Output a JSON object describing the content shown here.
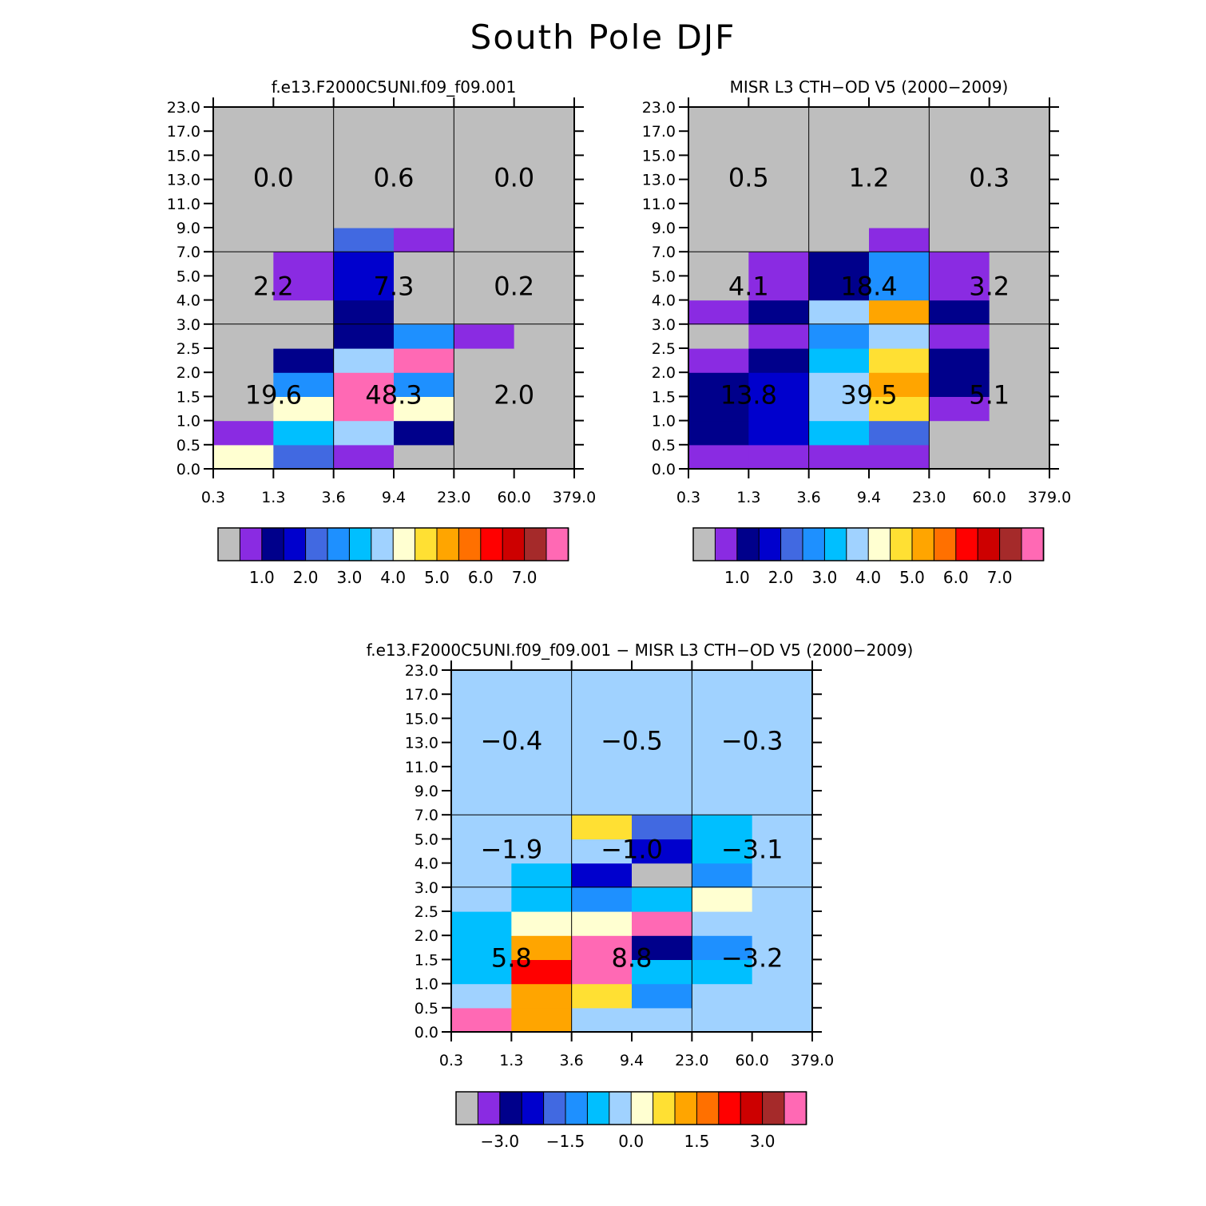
{
  "title": "South Pole DJF",
  "palette": [
    "#bebebe",
    "#8a2be2",
    "#00008b",
    "#0000cd",
    "#4169e1",
    "#1e90ff",
    "#00bfff",
    "#a0d2ff",
    "#ffffd1",
    "#ffe033",
    "#ffa500",
    "#ff7000",
    "#ff0000",
    "#cd0000",
    "#a52a2a",
    "#ff69b4"
  ],
  "chart_data": [
    {
      "type": "heatmap",
      "title": "f.e13.F2000C5UNI.f09_f09.001",
      "x_tick_labels": [
        "0.3",
        "1.3",
        "3.6",
        "9.4",
        "23.0",
        "60.0",
        "379.0"
      ],
      "y_tick_labels": [
        "0.0",
        "0.5",
        "1.0",
        "1.5",
        "2.0",
        "2.5",
        "3.0",
        "4.0",
        "5.0",
        "7.0",
        "9.0",
        "11.0",
        "13.0",
        "15.0",
        "17.0",
        "23.0"
      ],
      "cells_color_index_rows_bottom_to_top": [
        [
          8,
          4,
          1,
          0,
          0,
          0
        ],
        [
          1,
          6,
          7,
          2,
          0,
          0
        ],
        [
          0,
          8,
          15,
          8,
          0,
          0
        ],
        [
          0,
          5,
          15,
          5,
          0,
          0
        ],
        [
          0,
          2,
          7,
          15,
          0,
          0
        ],
        [
          0,
          0,
          2,
          5,
          1,
          0
        ],
        [
          0,
          0,
          2,
          0,
          0,
          0
        ],
        [
          0,
          1,
          3,
          0,
          0,
          0
        ],
        [
          0,
          1,
          3,
          0,
          0,
          0
        ],
        [
          0,
          0,
          4,
          1,
          0,
          0
        ],
        [
          0,
          0,
          0,
          0,
          0,
          0
        ],
        [
          0,
          0,
          0,
          0,
          0,
          0
        ],
        [
          0,
          0,
          0,
          0,
          0,
          0
        ],
        [
          0,
          0,
          0,
          0,
          0,
          0
        ],
        [
          0,
          0,
          0,
          0,
          0,
          0
        ]
      ],
      "group_totals": [
        [
          "19.6",
          "48.3",
          "2.0"
        ],
        [
          "2.2",
          "7.3",
          "0.2"
        ],
        [
          "0.0",
          "0.6",
          "0.0"
        ]
      ],
      "colorbar_labels": [
        "1.0",
        "2.0",
        "3.0",
        "4.0",
        "5.0",
        "6.0",
        "7.0"
      ]
    },
    {
      "type": "heatmap",
      "title": "MISR L3 CTH-OD V5 (2000-2009)",
      "x_tick_labels": [
        "0.3",
        "1.3",
        "3.6",
        "9.4",
        "23.0",
        "60.0",
        "379.0"
      ],
      "y_tick_labels": [
        "0.0",
        "0.5",
        "1.0",
        "1.5",
        "2.0",
        "2.5",
        "3.0",
        "4.0",
        "5.0",
        "7.0",
        "9.0",
        "11.0",
        "13.0",
        "15.0",
        "17.0",
        "23.0"
      ],
      "cells_color_index_rows_bottom_to_top": [
        [
          1,
          1,
          1,
          1,
          0,
          0
        ],
        [
          2,
          3,
          6,
          4,
          0,
          0
        ],
        [
          2,
          3,
          7,
          9,
          1,
          0
        ],
        [
          2,
          3,
          7,
          10,
          2,
          0
        ],
        [
          1,
          2,
          6,
          9,
          2,
          0
        ],
        [
          0,
          1,
          5,
          7,
          1,
          0
        ],
        [
          1,
          2,
          7,
          10,
          2,
          0
        ],
        [
          0,
          1,
          2,
          5,
          1,
          0
        ],
        [
          0,
          1,
          2,
          5,
          1,
          0
        ],
        [
          0,
          0,
          0,
          1,
          0,
          0
        ],
        [
          0,
          0,
          0,
          0,
          0,
          0
        ],
        [
          0,
          0,
          0,
          0,
          0,
          0
        ],
        [
          0,
          0,
          0,
          0,
          0,
          0
        ],
        [
          0,
          0,
          0,
          0,
          0,
          0
        ],
        [
          0,
          0,
          0,
          0,
          0,
          0
        ]
      ],
      "group_totals": [
        [
          "13.8",
          "39.5",
          "5.1"
        ],
        [
          "4.1",
          "18.4",
          "3.2"
        ],
        [
          "0.5",
          "1.2",
          "0.3"
        ]
      ],
      "colorbar_labels": [
        "1.0",
        "2.0",
        "3.0",
        "4.0",
        "5.0",
        "6.0",
        "7.0"
      ]
    },
    {
      "type": "heatmap",
      "title": "f.e13.F2000C5UNI.f09_f09.001 - MISR L3 CTH-OD V5 (2000-2009)",
      "x_tick_labels": [
        "0.3",
        "1.3",
        "3.6",
        "9.4",
        "23.0",
        "60.0",
        "379.0"
      ],
      "y_tick_labels": [
        "0.0",
        "0.5",
        "1.0",
        "1.5",
        "2.0",
        "2.5",
        "3.0",
        "4.0",
        "5.0",
        "7.0",
        "9.0",
        "11.0",
        "13.0",
        "15.0",
        "17.0",
        "23.0"
      ],
      "cells_color_index_rows_bottom_to_top": [
        [
          15,
          10,
          7,
          7,
          7,
          7
        ],
        [
          7,
          10,
          9,
          5,
          7,
          7
        ],
        [
          6,
          12,
          15,
          6,
          6,
          7
        ],
        [
          6,
          10,
          15,
          2,
          5,
          7
        ],
        [
          6,
          8,
          8,
          15,
          7,
          7
        ],
        [
          7,
          6,
          5,
          6,
          8,
          7
        ],
        [
          7,
          6,
          3,
          0,
          5,
          7
        ],
        [
          7,
          7,
          7,
          3,
          6,
          7
        ],
        [
          7,
          7,
          9,
          4,
          6,
          7
        ],
        [
          7,
          7,
          7,
          7,
          7,
          7
        ],
        [
          7,
          7,
          7,
          7,
          7,
          7
        ],
        [
          7,
          7,
          7,
          7,
          7,
          7
        ],
        [
          7,
          7,
          7,
          7,
          7,
          7
        ],
        [
          7,
          7,
          7,
          7,
          7,
          7
        ],
        [
          7,
          7,
          7,
          7,
          7,
          7
        ]
      ],
      "group_totals": [
        [
          "5.8",
          "8.8",
          "-3.2"
        ],
        [
          "-1.9",
          "-1.0",
          "-3.1"
        ],
        [
          "-0.4",
          "-0.5",
          "-0.3"
        ]
      ],
      "colorbar_labels": [
        "-3.0",
        "-1.5",
        "0.0",
        "1.5",
        "3.0"
      ]
    }
  ]
}
